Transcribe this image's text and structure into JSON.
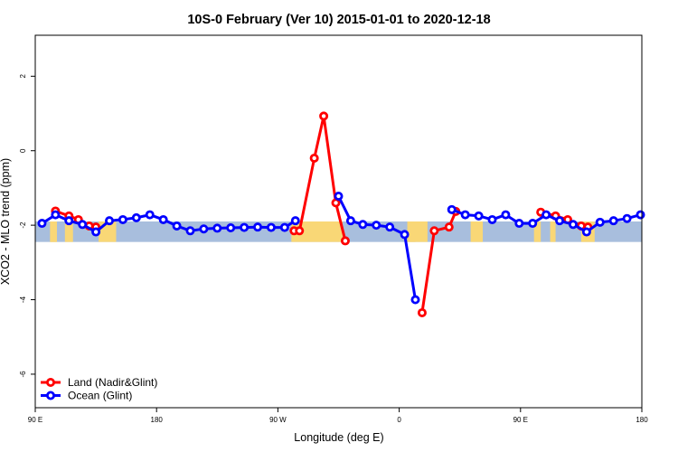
{
  "chart_data": {
    "type": "line",
    "title": "10S-0 February (Ver 10)   2015-01-01 to 2020-12-18",
    "xlabel": "Longitude (deg E)",
    "ylabel": "XCO2 - MLO trend (ppm)",
    "xlim": [
      90,
      540
    ],
    "ylim": [
      -6.9,
      3.1
    ],
    "x_ticks": [
      {
        "value": 90,
        "label": "90 E"
      },
      {
        "value": 180,
        "label": "180"
      },
      {
        "value": 270,
        "label": "90 W"
      },
      {
        "value": 360,
        "label": "0"
      },
      {
        "value": 450,
        "label": "90 E"
      },
      {
        "value": 540,
        "label": "180"
      }
    ],
    "y_ticks": [
      {
        "value": 2,
        "label": "2"
      },
      {
        "value": 0,
        "label": "0"
      },
      {
        "value": -2,
        "label": "-2"
      },
      {
        "value": -4,
        "label": "-4"
      },
      {
        "value": -6,
        "label": "-6"
      }
    ],
    "map_band": {
      "lat_range": "10S-0",
      "ymin": -2.45,
      "ymax": -1.9,
      "ocean_color": "#a8bedd",
      "land_color": "#f9d776"
    },
    "land_segments": [
      {
        "x0": 101,
        "x1": 106
      },
      {
        "x0": 112,
        "x1": 118
      },
      {
        "x0": 137,
        "x1": 150
      },
      {
        "x0": 280,
        "x1": 318
      },
      {
        "x0": 368,
        "x1": 381
      },
      {
        "x0": 366,
        "x1": 372
      },
      {
        "x0": 101,
        "x1": 106
      },
      {
        "x0": 413,
        "x1": 422
      },
      {
        "x0": 460,
        "x1": 465
      },
      {
        "x0": 472,
        "x1": 476
      },
      {
        "x0": 495,
        "x1": 505
      }
    ],
    "series": [
      {
        "name": "Land (Nadir&Glint)",
        "color": "#ff0000",
        "segments": [
          [
            [
              105,
              -1.62
            ],
            [
              115,
              -1.75
            ],
            [
              122,
              -1.85
            ],
            [
              130,
              -2.02
            ],
            [
              135,
              -2.05
            ]
          ],
          [
            [
              282,
              -2.15
            ],
            [
              286,
              -2.15
            ],
            [
              297,
              -0.2
            ],
            [
              304,
              0.93
            ],
            [
              313,
              -1.4
            ],
            [
              320,
              -2.42
            ]
          ],
          [
            [
              377,
              -4.35
            ],
            [
              386,
              -2.15
            ],
            [
              397,
              -2.05
            ],
            [
              402,
              -1.63
            ]
          ],
          [
            [
              465,
              -1.65
            ],
            [
              476,
              -1.75
            ],
            [
              485,
              -1.85
            ],
            [
              495,
              -2.02
            ],
            [
              500,
              -2.05
            ]
          ]
        ]
      },
      {
        "name": "Ocean (Glint)",
        "color": "#0000ff",
        "segments": [
          [
            [
              95,
              -1.95
            ],
            [
              105,
              -1.72
            ],
            [
              115,
              -1.88
            ],
            [
              125,
              -1.98
            ],
            [
              135,
              -2.18
            ],
            [
              145,
              -1.88
            ],
            [
              155,
              -1.85
            ],
            [
              165,
              -1.8
            ],
            [
              175,
              -1.72
            ],
            [
              185,
              -1.85
            ],
            [
              195,
              -2.02
            ],
            [
              205,
              -2.15
            ],
            [
              215,
              -2.1
            ],
            [
              225,
              -2.08
            ],
            [
              235,
              -2.07
            ],
            [
              245,
              -2.06
            ],
            [
              255,
              -2.05
            ],
            [
              265,
              -2.06
            ],
            [
              275,
              -2.06
            ],
            [
              283,
              -1.88
            ]
          ],
          [
            [
              315,
              -1.22
            ],
            [
              324,
              -1.88
            ],
            [
              333,
              -1.98
            ],
            [
              343,
              -2.0
            ],
            [
              353,
              -2.05
            ],
            [
              364,
              -2.25
            ],
            [
              372,
              -4.0
            ]
          ],
          [
            [
              399,
              -1.58
            ],
            [
              409,
              -1.72
            ],
            [
              419,
              -1.75
            ],
            [
              429,
              -1.85
            ],
            [
              439,
              -1.72
            ],
            [
              449,
              -1.95
            ],
            [
              459,
              -1.95
            ],
            [
              469,
              -1.72
            ],
            [
              479,
              -1.88
            ],
            [
              489,
              -1.98
            ],
            [
              499,
              -2.18
            ],
            [
              509,
              -1.92
            ],
            [
              519,
              -1.88
            ],
            [
              529,
              -1.82
            ],
            [
              539,
              -1.72
            ]
          ]
        ]
      }
    ],
    "legend": {
      "position": "bottom-left"
    }
  }
}
